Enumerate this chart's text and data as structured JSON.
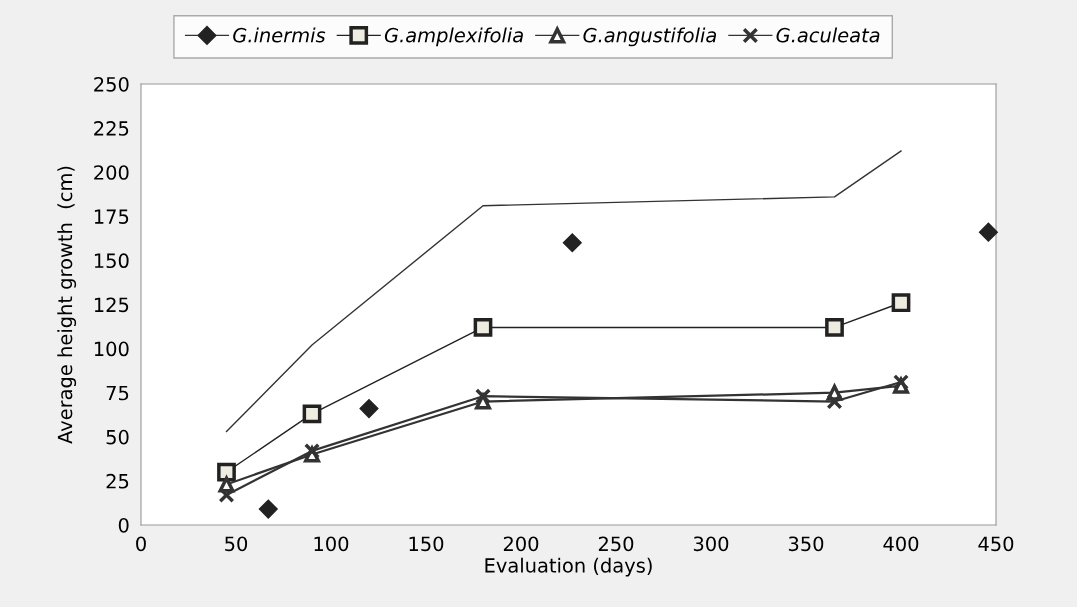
{
  "chart_data": {
    "type": "line",
    "xlabel": "Evaluation (days)",
    "ylabel": "Average height growth  (cm)",
    "x": [
      45,
      90,
      180,
      365,
      400
    ],
    "series": [
      {
        "name": "G.inermis",
        "color": "#333333",
        "marker": "none",
        "values": [
          53,
          102,
          181,
          186,
          212
        ]
      },
      {
        "type": "scatter",
        "color": "#222222",
        "marker": "diamond",
        "x": [
          67,
          120,
          227,
          446,
          null
        ],
        "values": [
          9,
          66,
          160,
          166,
          null
        ]
      },
      {
        "name": "G.amplexifolia",
        "color": "#222222",
        "marker": "square",
        "values": [
          30,
          63,
          112,
          112,
          126
        ]
      },
      {
        "name": "G.angustifolia",
        "color": "#333333",
        "marker": "triangle",
        "values": [
          23,
          40,
          70,
          75,
          79
        ]
      },
      {
        "name": "G.aculeata",
        "color": "#333333",
        "marker": "cross",
        "values": [
          17,
          42,
          73,
          70,
          81
        ]
      }
    ],
    "xlim": [
      0,
      450
    ],
    "xticks": [
      0,
      50,
      100,
      150,
      200,
      250,
      300,
      350,
      400,
      450
    ],
    "ylim": [
      0,
      250
    ],
    "yticks": [
      0,
      25,
      50,
      75,
      100,
      125,
      150,
      175,
      200,
      225,
      250
    ],
    "grid": false,
    "legend": "top"
  }
}
